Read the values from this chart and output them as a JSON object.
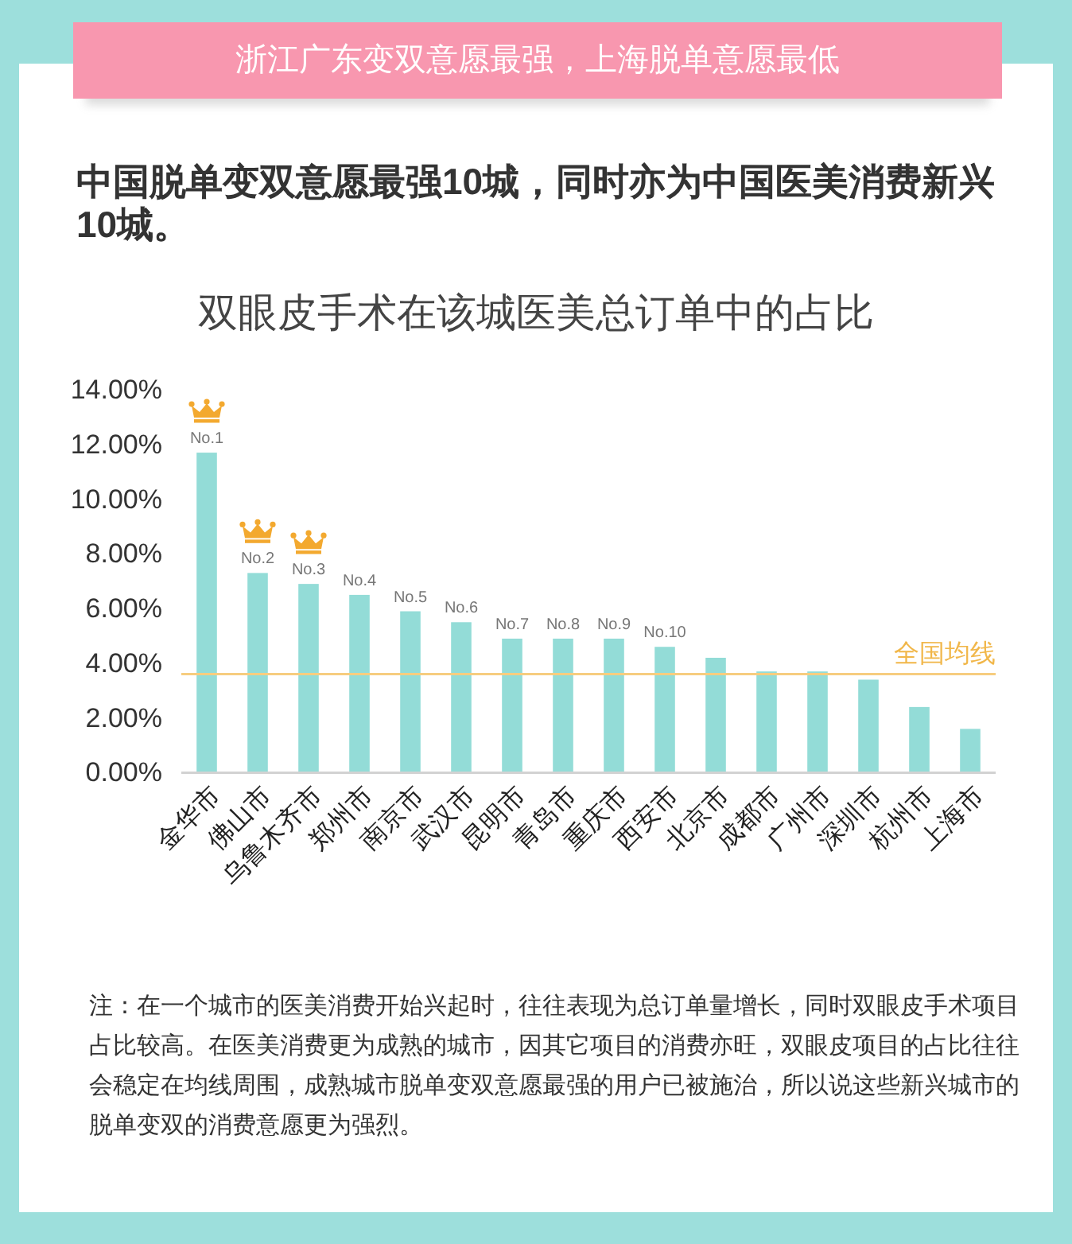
{
  "chart_data": {
    "type": "bar",
    "title": "浙江广东变双意愿最强，上海脱单意愿最低",
    "subtitle": "中国脱单变双意愿最强10城，同时亦为中国医美消费新兴10城。",
    "categories": [
      "金华市",
      "佛山市",
      "乌鲁木齐市",
      "郑州市",
      "南京市",
      "武汉市",
      "昆明市",
      "青岛市",
      "重庆市",
      "西安市",
      "北京市",
      "成都市",
      "广州市",
      "深圳市",
      "杭州市",
      "上海市"
    ],
    "values": [
      11.7,
      7.3,
      6.9,
      6.5,
      5.9,
      5.5,
      4.9,
      4.9,
      4.9,
      4.6,
      4.2,
      3.7,
      3.7,
      3.4,
      2.4,
      1.6
    ],
    "color": "#93dcd7",
    "ylim": [
      0,
      14
    ],
    "yticks": [
      {
        "value": 0,
        "label": "0.00%"
      },
      {
        "value": 2,
        "label": "2.00%"
      },
      {
        "value": 4,
        "label": "4.00%"
      },
      {
        "value": 6,
        "label": "6.00%"
      },
      {
        "value": 8,
        "label": "8.00%"
      },
      {
        "value": 10,
        "label": "10.00%"
      },
      {
        "value": 12,
        "label": "12.00%"
      },
      {
        "value": 14,
        "label": "14.00%"
      }
    ],
    "ref_lines": [
      {
        "axis": "y",
        "value": 3.6,
        "label": "全国均线",
        "color": "#f7cd7f"
      }
    ],
    "annotations": [
      "双眼皮手术在该城医美总订单中的占比",
      {
        "text": "No.1",
        "x": "金华市",
        "y": 11.7
      },
      {
        "text": "No.2",
        "x": "佛山市",
        "y": 7.3
      },
      {
        "text": "No.3",
        "x": "乌鲁木齐市",
        "y": 6.9
      },
      {
        "text": "No.4",
        "x": "郑州市",
        "y": 6.5
      },
      {
        "text": "No.5",
        "x": "南京市",
        "y": 5.9
      },
      {
        "text": "No.6",
        "x": "武汉市",
        "y": 5.5
      },
      {
        "text": "No.7",
        "x": "昆明市",
        "y": 4.9
      },
      {
        "text": "No.8",
        "x": "青岛市",
        "y": 4.9
      },
      {
        "text": "No.9",
        "x": "重庆市",
        "y": 4.9
      },
      {
        "text": "No.10",
        "x": "西安市",
        "y": 4.6
      },
      "注：在一个城市的医美消费开始兴起时，往往表现为总订单量增长，同时双眼皮手术项目占比较高。在医美消费更为成熟的城市，因其它项目的消费亦旺，双眼皮项目的占比往往会稳定在均线周围，成熟城市脱单变双意愿最强的用户已被施治，所以说这些新兴城市的脱单变双的消费意愿更为强烈。"
    ]
  }
}
